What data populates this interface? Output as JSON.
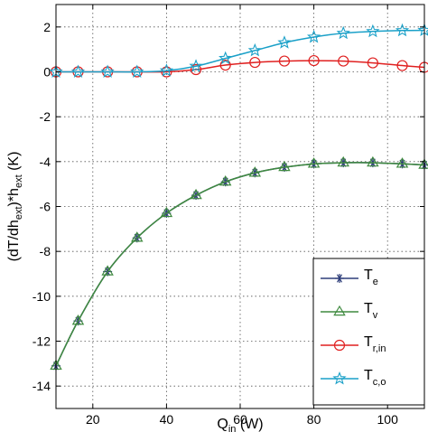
{
  "chart_data": {
    "type": "line",
    "xlabel": {
      "main": "Q",
      "sub": "in",
      "rest": " (W)"
    },
    "ylabel": {
      "p1": "(dT/dh",
      "sub1": "ext",
      "p2": ")*h",
      "sub2": "ext",
      "p3": " (K)"
    },
    "xlim": [
      10,
      110
    ],
    "ylim": [
      -15,
      3
    ],
    "xticks": [
      20,
      40,
      60,
      80,
      100
    ],
    "yticks": [
      2,
      0,
      -2,
      -4,
      -6,
      -8,
      -10,
      -12,
      -14
    ],
    "grid": true,
    "legend_position": "bottom-right",
    "series": [
      {
        "name": "T",
        "sub": "e",
        "color": "#2e3e7a",
        "marker": "asterisk",
        "x": [
          10,
          16,
          24,
          32,
          40,
          48,
          56,
          64,
          72,
          80,
          88,
          96,
          104,
          110
        ],
        "y": [
          -13.1,
          -11.1,
          -8.9,
          -7.4,
          -6.3,
          -5.5,
          -4.9,
          -4.5,
          -4.25,
          -4.1,
          -4.05,
          -4.05,
          -4.1,
          -4.15
        ]
      },
      {
        "name": "T",
        "sub": "v",
        "color": "#3f8a3f",
        "marker": "triangle",
        "x": [
          10,
          16,
          24,
          32,
          40,
          48,
          56,
          64,
          72,
          80,
          88,
          96,
          104,
          110
        ],
        "y": [
          -13.1,
          -11.1,
          -8.9,
          -7.4,
          -6.3,
          -5.5,
          -4.9,
          -4.5,
          -4.25,
          -4.1,
          -4.05,
          -4.05,
          -4.1,
          -4.15
        ]
      },
      {
        "name": "T",
        "sub": "r,in",
        "color": "#e02020",
        "marker": "circle",
        "x": [
          10,
          16,
          24,
          32,
          40,
          48,
          56,
          64,
          72,
          80,
          88,
          96,
          104,
          110
        ],
        "y": [
          0,
          0,
          0,
          0,
          0,
          0.1,
          0.3,
          0.42,
          0.48,
          0.5,
          0.48,
          0.4,
          0.28,
          0.2
        ]
      },
      {
        "name": "T",
        "sub": "c,o",
        "color": "#1aa0c8",
        "marker": "star",
        "x": [
          10,
          16,
          24,
          32,
          40,
          48,
          56,
          64,
          72,
          80,
          88,
          96,
          104,
          110
        ],
        "y": [
          0,
          0,
          0,
          0,
          0.05,
          0.25,
          0.6,
          0.95,
          1.3,
          1.55,
          1.72,
          1.8,
          1.84,
          1.85
        ]
      }
    ]
  }
}
